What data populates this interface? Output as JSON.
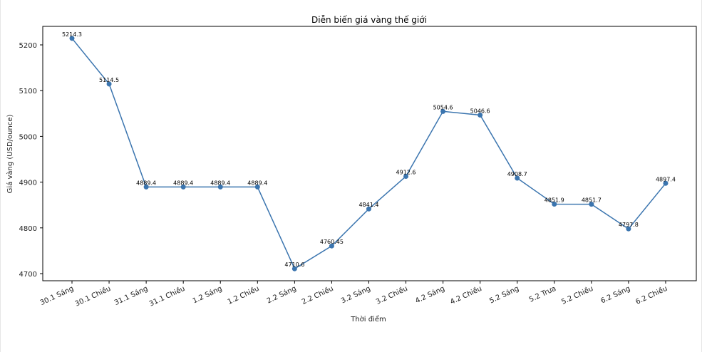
{
  "chart_data": {
    "type": "line",
    "title": "Diễn biến giá vàng thế giới",
    "xlabel": "Thời điểm",
    "ylabel": "Giá vàng (USD/ounce)",
    "categories": [
      "30.1 Sáng",
      "30.1 Chiều",
      "31.1 Sáng",
      "31.1 Chiều",
      "1.2 Sáng",
      "1.2 Chiều",
      "2.2 Sáng",
      "2.2 Chiều",
      "3.2 Sáng",
      "3.2 Chiều",
      "4.2 Sáng",
      "4.2 Chiều",
      "5.2 Sáng",
      "5.2 Trưa",
      "5.2 Chiều",
      "6.2 Sáng",
      "6.2 Chiều"
    ],
    "series": [
      {
        "name": "Giá vàng",
        "values": [
          5214.3,
          5114.5,
          4889.4,
          4889.4,
          4889.4,
          4889.4,
          4710.6,
          4760.45,
          4841.4,
          4912.6,
          5054.6,
          5046.6,
          4908.7,
          4851.9,
          4851.7,
          4797.8,
          4897.4
        ],
        "labels": [
          "5214.3",
          "5114.5",
          "4889.4",
          "4889.4",
          "4889.4",
          "4889.4",
          "4710.6",
          "4760.45",
          "4841.4",
          "4912.6",
          "5054.6",
          "5046.6",
          "4908.7",
          "4851.9",
          "4851.7",
          "4797.8",
          "4897.4"
        ],
        "color": "#3b75af",
        "marker": "circle"
      }
    ],
    "yticks": [
      4700,
      4800,
      4900,
      5000,
      5100,
      5200
    ],
    "ytick_labels": [
      "4700",
      "4800",
      "4900",
      "5000",
      "5100",
      "5200"
    ],
    "ylim": [
      4685,
      5240
    ],
    "grid": false,
    "legend": null
  }
}
